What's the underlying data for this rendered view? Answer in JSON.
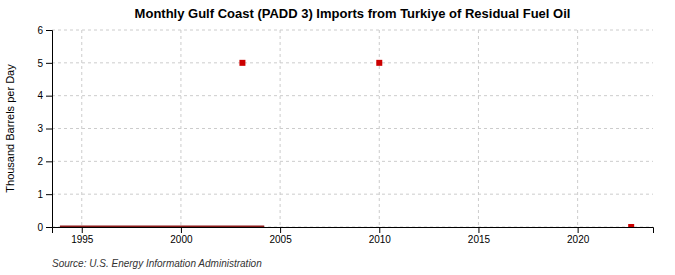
{
  "chart_data": {
    "type": "line",
    "title": "Monthly Gulf Coast (PADD 3) Imports from Turkiye of Residual Fuel Oil",
    "ylabel": "Thousand Barrels per Day",
    "source": "Source: U.S. Energy Information Administration",
    "series": [
      {
        "type": "line",
        "color": "#8b1a1a",
        "x": [
          1993.9,
          2004.2
        ],
        "values": [
          0,
          0
        ]
      },
      {
        "type": "scatter",
        "marker": "square",
        "color": "#cc0000",
        "x": [
          2003.1,
          2010.0,
          2022.7
        ],
        "values": [
          5.0,
          5.0,
          0.0
        ]
      }
    ],
    "xlim": [
      1993.5,
      2023.8
    ],
    "ylim": [
      0,
      6
    ],
    "xticks": [
      1995,
      2000,
      2005,
      2010,
      2015,
      2020
    ],
    "yticks": [
      0,
      1,
      2,
      3,
      4,
      5,
      6
    ],
    "grid": true
  }
}
